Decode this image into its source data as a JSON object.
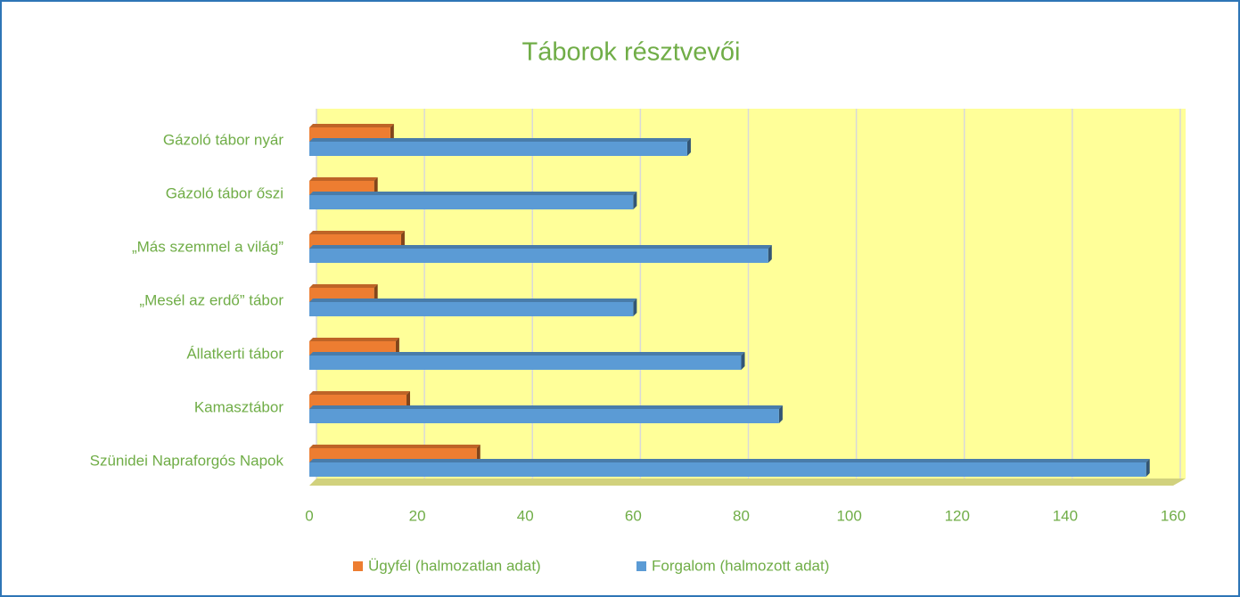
{
  "chart_data": {
    "type": "bar3d_horizontal",
    "title": "Táborok résztvevői",
    "categories": [
      "Gázoló tábor nyár",
      "Gázoló tábor őszi",
      "„Más szemmel a világ”",
      "„Mesél az erdő” tábor",
      "Állatkerti tábor",
      "Kamasztábor",
      "Szünidei Napraforgós Napok"
    ],
    "series": [
      {
        "name": "Ügyfél (halmozatlan adat)",
        "color": "#ed7d31",
        "values": [
          15,
          12,
          17,
          12,
          16,
          18,
          31
        ]
      },
      {
        "name": "Forgalom (halmozott adat)",
        "color": "#5b9bd5",
        "values": [
          70,
          60,
          85,
          60,
          80,
          87,
          155
        ]
      }
    ],
    "xlim": [
      0,
      160
    ],
    "xticks": [
      0,
      20,
      40,
      60,
      80,
      100,
      120,
      140,
      160
    ],
    "grid": true,
    "legend": "bottom",
    "wall_color": "#ffff99"
  }
}
